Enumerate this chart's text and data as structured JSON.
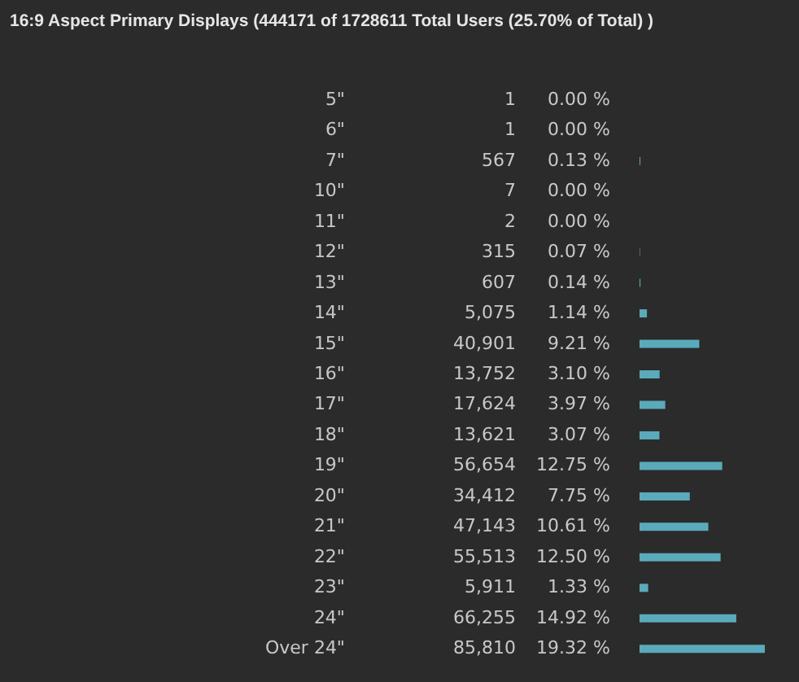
{
  "chart_data": {
    "type": "bar",
    "orientation": "horizontal",
    "title": "16:9 Aspect Primary Displays (444171 of 1728611 Total Users (25.70% of Total) )",
    "categories": [
      "5\"",
      "6\"",
      "7\"",
      "10\"",
      "11\"",
      "12\"",
      "13\"",
      "14\"",
      "15\"",
      "16\"",
      "17\"",
      "18\"",
      "19\"",
      "20\"",
      "21\"",
      "22\"",
      "23\"",
      "24\"",
      "Over 24\""
    ],
    "values": [
      0.0,
      0.0,
      0.13,
      0.0,
      0.0,
      0.07,
      0.14,
      1.14,
      9.21,
      3.1,
      3.97,
      3.07,
      12.75,
      7.75,
      10.61,
      12.5,
      1.33,
      14.92,
      19.32
    ],
    "value_labels": [
      "0.00 %",
      "0.00 %",
      "0.13 %",
      "0.00 %",
      "0.00 %",
      "0.07 %",
      "0.14 %",
      "1.14 %",
      "9.21 %",
      "3.10 %",
      "3.97 %",
      "3.07 %",
      "12.75 %",
      "7.75 %",
      "10.61 %",
      "12.50 %",
      "1.33 %",
      "14.92 %",
      "19.32 %"
    ],
    "color": "#5aaabb",
    "annotations": [
      "1",
      "1",
      "567",
      "7",
      "2",
      "315",
      "607",
      "5,075",
      "40,901",
      "13,752",
      "17,624",
      "13,621",
      "56,654",
      "34,412",
      "47,143",
      "55,513",
      "5,911",
      "66,255",
      "85,810"
    ]
  }
}
